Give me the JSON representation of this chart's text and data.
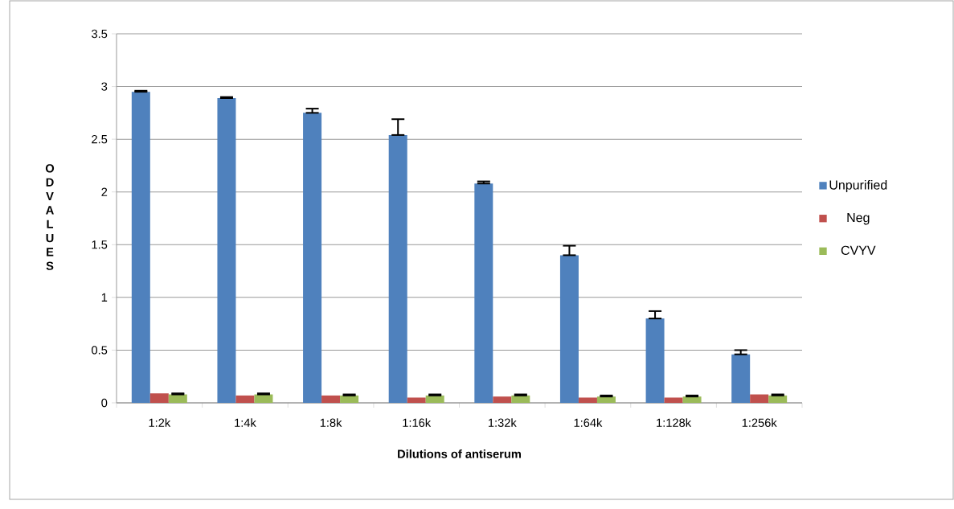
{
  "chart_data": {
    "type": "bar",
    "xlabel": "Dilutions of antiserum",
    "ylabel": "OD VALUES",
    "categories": [
      "1:2k",
      "1:4k",
      "1:8k",
      "1:16k",
      "1:32k",
      "1:64k",
      "1:128k",
      "1:256k"
    ],
    "series": [
      {
        "name": "Unpurified",
        "color": "#4f81bd",
        "values": [
          2.95,
          2.89,
          2.75,
          2.54,
          2.08,
          1.4,
          0.8,
          0.46
        ],
        "errors": [
          [
            2.95,
            2.96
          ],
          [
            2.89,
            2.9
          ],
          [
            2.75,
            2.79
          ],
          [
            2.54,
            2.69
          ],
          [
            2.08,
            2.1
          ],
          [
            1.4,
            1.49
          ],
          [
            0.8,
            0.87
          ],
          [
            0.46,
            0.5
          ]
        ]
      },
      {
        "name": "Neg",
        "color": "#c0504d",
        "values": [
          0.09,
          0.07,
          0.07,
          0.05,
          0.06,
          0.05,
          0.05,
          0.08
        ]
      },
      {
        "name": "CVYV",
        "color": "#9bbb59",
        "values": [
          0.08,
          0.08,
          0.07,
          0.07,
          0.07,
          0.06,
          0.06,
          0.07
        ],
        "errors": [
          [
            0.08,
            0.09
          ],
          [
            0.08,
            0.09
          ],
          [
            0.07,
            0.08
          ],
          [
            0.07,
            0.08
          ],
          [
            0.07,
            0.08
          ],
          [
            0.06,
            0.07
          ],
          [
            0.06,
            0.07
          ],
          [
            0.07,
            0.08
          ]
        ]
      }
    ],
    "ylim": [
      0,
      3.5
    ],
    "yticks": [
      0,
      0.5,
      1,
      1.5,
      2,
      2.5,
      3,
      3.5
    ],
    "grid": "y",
    "legend": "right"
  }
}
